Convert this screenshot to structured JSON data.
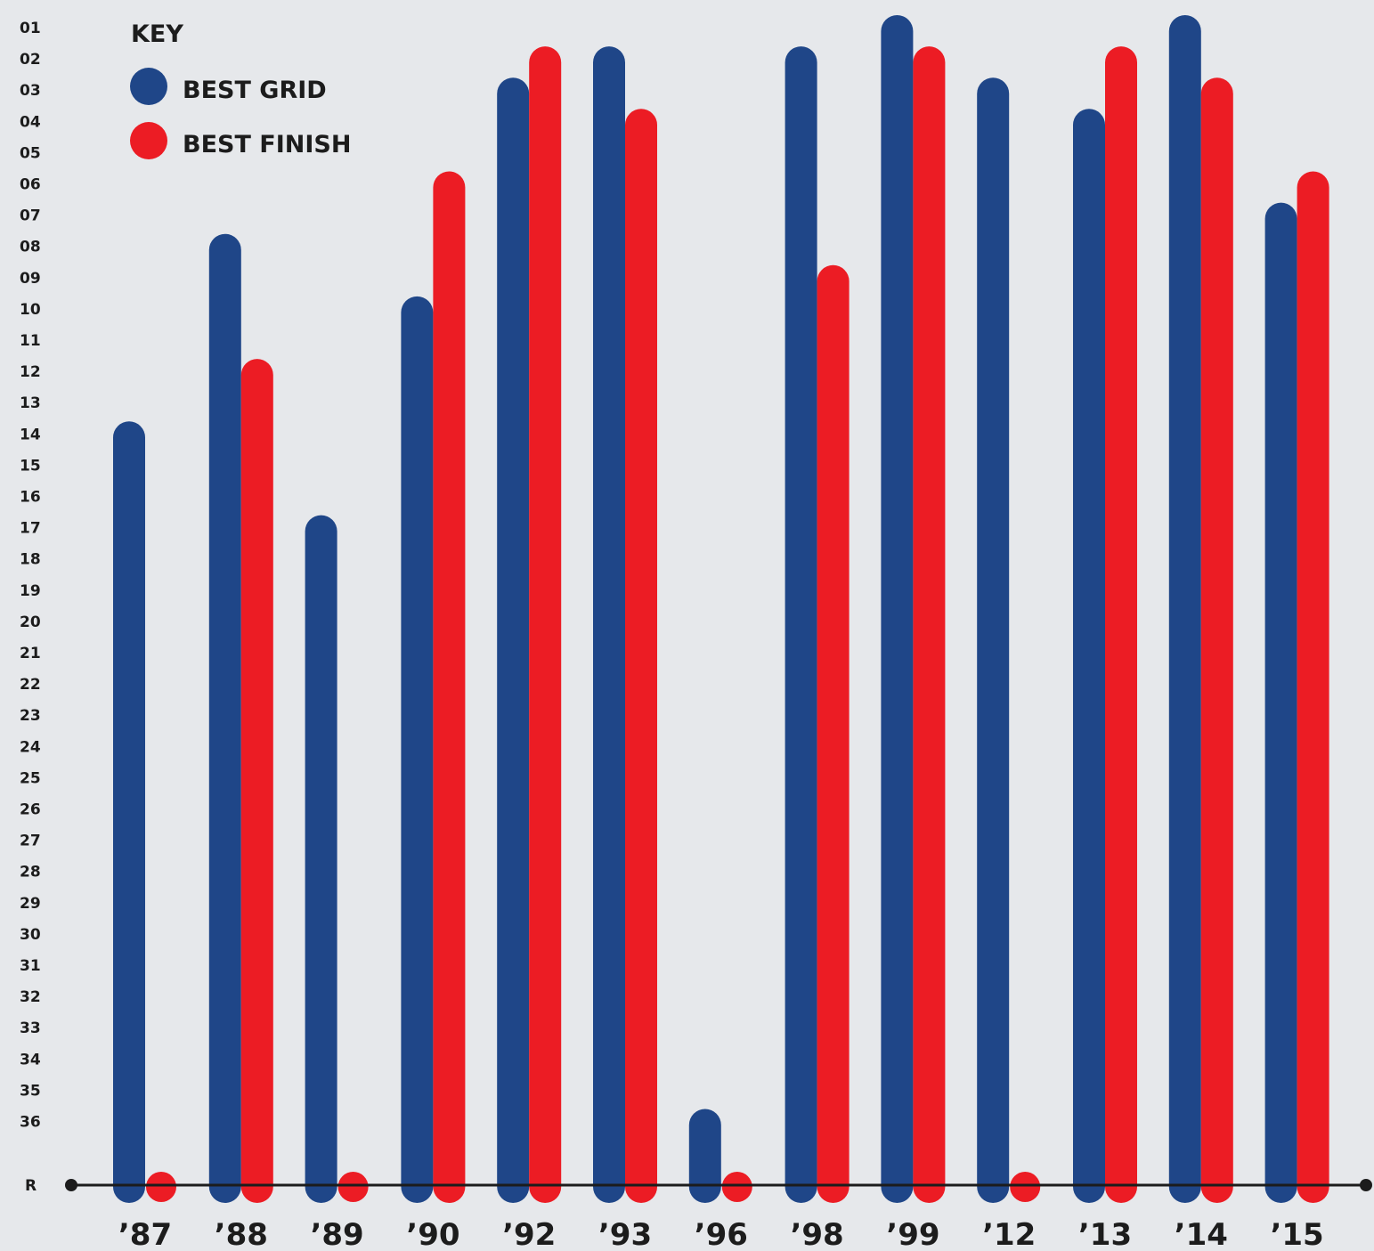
{
  "chart_data": {
    "type": "bar",
    "categories": [
      "’87",
      "’88",
      "’89",
      "’90",
      "’92",
      "’93",
      "’96",
      "’98",
      "’99",
      "’12",
      "’13",
      "’14",
      "’15"
    ],
    "y_tick_labels": [
      "01",
      "02",
      "03",
      "04",
      "05",
      "06",
      "07",
      "08",
      "09",
      "10",
      "11",
      "12",
      "13",
      "14",
      "15",
      "16",
      "17",
      "18",
      "19",
      "20",
      "21",
      "22",
      "23",
      "24",
      "25",
      "26",
      "27",
      "28",
      "29",
      "30",
      "31",
      "32",
      "33",
      "34",
      "35",
      "36",
      "R"
    ],
    "y_axis": {
      "reversed": true,
      "range": [
        1,
        36
      ],
      "baseline_label": "R"
    },
    "legend": {
      "title": "KEY",
      "placement": "top-left"
    },
    "series": [
      {
        "name": "BEST GRID",
        "color": "#1f4688",
        "values": [
          14,
          8,
          17,
          10,
          3,
          2,
          36,
          2,
          1,
          3,
          4,
          1,
          7
        ]
      },
      {
        "name": "BEST FINISH",
        "color": "#ec1c24",
        "values": [
          "R",
          12,
          "R",
          6,
          2,
          4,
          "R",
          9,
          2,
          "R",
          2,
          3,
          6
        ]
      }
    ],
    "grid": false
  }
}
